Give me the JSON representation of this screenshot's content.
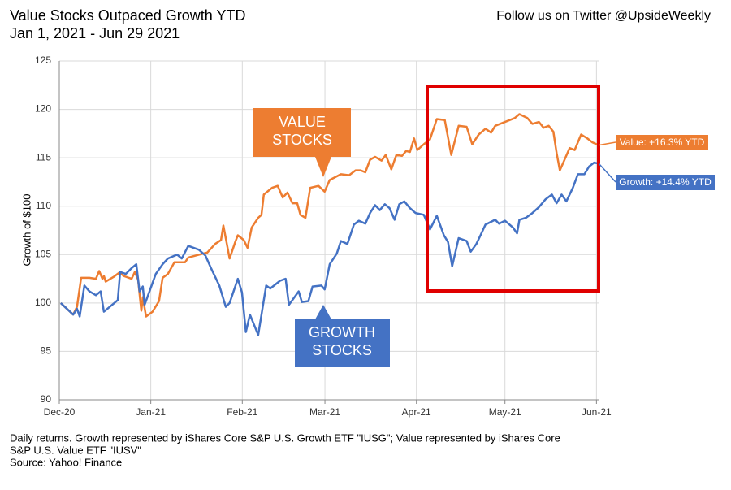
{
  "chart_data": {
    "type": "line",
    "title": [
      "Value Stocks Outpaced Growth YTD",
      "Jan 1, 2021 - Jun 29 2021"
    ],
    "header_note": "Follow us on Twitter @UpsideWeekly",
    "y_label": "Growth of $100",
    "footnote": [
      "Daily returns. Growth represented by iShares Core S&P U.S. Growth ETF \"IUSG\"; Value represented by iShares Core",
      "S&P U.S. Value ETF \"IUSV\"",
      "Source: Yahoo! Finance"
    ],
    "annotations": {
      "value_callout": [
        "VALUE",
        "STOCKS"
      ],
      "growth_callout": [
        "GROWTH",
        "STOCKS"
      ]
    },
    "xlim": [
      0,
      183
    ],
    "xticks": [
      {
        "value": 0,
        "label": "Dec-20"
      },
      {
        "value": 31,
        "label": "Jan-21"
      },
      {
        "value": 62,
        "label": "Feb-21"
      },
      {
        "value": 90,
        "label": "Mar-21"
      },
      {
        "value": 121,
        "label": "Apr-21"
      },
      {
        "value": 151,
        "label": "May-21"
      },
      {
        "value": 182,
        "label": "Jun-21"
      }
    ],
    "ylim": [
      90,
      125
    ],
    "yticks": [
      90,
      95,
      100,
      105,
      110,
      115,
      120,
      125
    ],
    "grid": true,
    "series": [
      {
        "label": "Value: +16.3% YTD",
        "color": "#ed7d31",
        "x": [
          0.5,
          4.7,
          6.0,
          7.4,
          10.2,
          12.4,
          13.5,
          14.6,
          15.1,
          15.7,
          18.4,
          20.6,
          21.7,
          24.5,
          25.6,
          26.7,
          27.8,
          28.3,
          29.4,
          31.6,
          33.8,
          35.0,
          36.8,
          39.0,
          42.6,
          43.7,
          48.7,
          50.1,
          52.8,
          54.8,
          55.6,
          57.7,
          59.6,
          60.5,
          62.5,
          63.8,
          65.2,
          67.4,
          68.5,
          69.3,
          72.1,
          74.0,
          75.7,
          77.3,
          79.0,
          80.6,
          81.7,
          83.4,
          85.0,
          87.8,
          89.9,
          91.6,
          95.4,
          98.2,
          100.4,
          102.1,
          103.7,
          105.3,
          107.0,
          109.2,
          110.6,
          112.5,
          114.2,
          116.1,
          117.5,
          118.8,
          120.2,
          121.3,
          123.5,
          125.6,
          127.9,
          130.6,
          132.8,
          135.3,
          138.0,
          139.9,
          142.1,
          144.4,
          146.3,
          147.7,
          151.0,
          154.3,
          155.9,
          158.6,
          160.3,
          162.5,
          164.1,
          165.8,
          167.4,
          168.5,
          169.6,
          171.2,
          172.9,
          174.6,
          176.8,
          178.9,
          180.6,
          182.8
        ],
        "values": [
          100,
          98.8,
          99.6,
          102.6,
          102.6,
          102.5,
          103.3,
          102.5,
          102.8,
          102.2,
          102.7,
          103.2,
          102.8,
          102.5,
          103.2,
          102.4,
          99.2,
          100.6,
          98.6,
          99.1,
          100.2,
          102.6,
          103.0,
          104.2,
          104.2,
          104.7,
          105.1,
          105.2,
          106.1,
          106.5,
          108.0,
          104.6,
          106.3,
          107.0,
          106.5,
          105.7,
          107.8,
          108.8,
          109.1,
          111.2,
          111.9,
          112.1,
          110.9,
          111.4,
          110.3,
          110.3,
          109.1,
          108.8,
          111.9,
          112.1,
          111.5,
          112.7,
          113.3,
          113.2,
          113.7,
          113.7,
          113.5,
          114.8,
          115.1,
          114.7,
          115.3,
          113.8,
          115.3,
          115.2,
          115.7,
          115.6,
          117.0,
          115.8,
          116.4,
          116.9,
          119.0,
          118.9,
          115.3,
          118.3,
          118.2,
          116.4,
          117.4,
          118.0,
          117.6,
          118.3,
          118.7,
          119.1,
          119.5,
          119.1,
          118.5,
          118.7,
          118.1,
          118.3,
          117.7,
          115.5,
          113.7,
          114.8,
          116.0,
          115.8,
          117.4,
          117.0,
          116.6,
          116.3
        ]
      },
      {
        "label": "Growth: +14.4% YTD",
        "color": "#4472c4",
        "x": [
          0.5,
          4.7,
          6.0,
          6.9,
          8.5,
          10.2,
          12.4,
          14.0,
          15.1,
          19.8,
          20.6,
          22.5,
          24.5,
          26.1,
          27.2,
          28.3,
          28.9,
          30.8,
          32.7,
          35.0,
          36.8,
          39.9,
          41.5,
          43.7,
          47.3,
          49.5,
          51.4,
          54.2,
          56.4,
          57.7,
          60.5,
          61.9,
          63.2,
          64.6,
          67.4,
          70.1,
          71.5,
          74.8,
          76.7,
          77.8,
          81.1,
          82.2,
          84.4,
          85.8,
          88.8,
          89.9,
          91.6,
          94.0,
          95.4,
          97.6,
          99.8,
          101.5,
          103.7,
          105.3,
          107.0,
          108.6,
          110.3,
          111.9,
          113.6,
          115.2,
          116.9,
          118.8,
          120.7,
          123.5,
          125.6,
          127.9,
          130.3,
          131.7,
          133.1,
          135.3,
          138.0,
          139.4,
          141.3,
          142.7,
          144.4,
          147.7,
          149.0,
          151.0,
          153.7,
          155.1,
          155.9,
          158.1,
          160.3,
          162.5,
          164.7,
          166.9,
          168.5,
          170.2,
          171.8,
          174.0,
          175.7,
          177.9,
          179.5,
          181.2,
          182.8
        ],
        "values": [
          100,
          98.8,
          99.4,
          98.6,
          101.8,
          101.2,
          100.8,
          101.2,
          99.1,
          100.3,
          103.2,
          103.0,
          103.6,
          104.0,
          101.2,
          101.7,
          99.8,
          101.4,
          103.0,
          104.0,
          104.6,
          105.0,
          104.6,
          105.9,
          105.5,
          104.9,
          103.6,
          101.8,
          99.6,
          100.0,
          102.5,
          101.1,
          97.0,
          98.8,
          96.7,
          101.8,
          101.5,
          102.3,
          102.5,
          99.8,
          101.2,
          100.1,
          100.2,
          101.7,
          101.8,
          101.4,
          104.0,
          105.1,
          106.4,
          106.1,
          108.1,
          108.5,
          108.2,
          109.3,
          110.1,
          109.6,
          110.2,
          109.8,
          108.6,
          110.2,
          110.5,
          109.8,
          109.3,
          109.1,
          107.6,
          109.0,
          107.0,
          106.3,
          103.8,
          106.7,
          106.4,
          105.3,
          106.1,
          107.0,
          108.1,
          108.6,
          108.2,
          108.5,
          107.8,
          107.2,
          108.6,
          108.8,
          109.3,
          109.9,
          110.7,
          111.2,
          110.3,
          111.2,
          110.5,
          111.9,
          113.3,
          113.3,
          114.1,
          114.5,
          114.4
        ]
      }
    ]
  }
}
